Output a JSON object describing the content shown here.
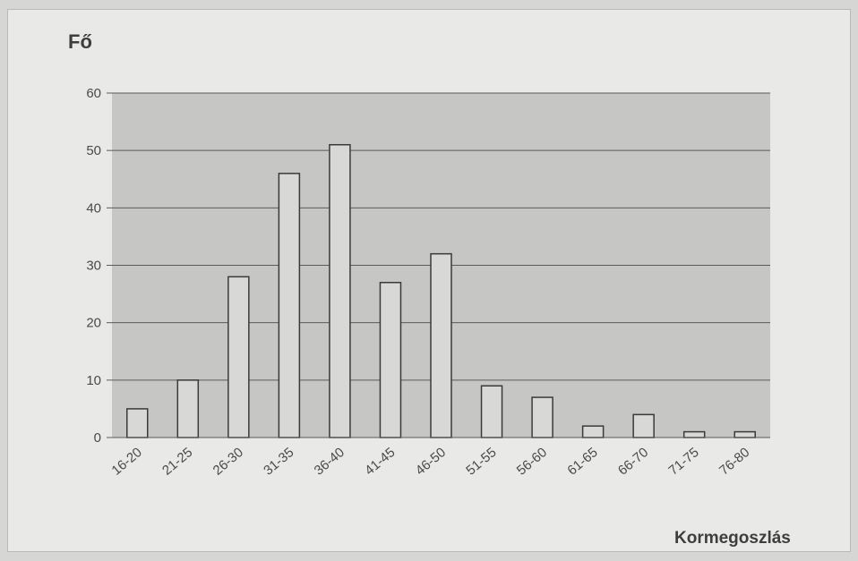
{
  "chart_data": {
    "type": "bar",
    "title": "",
    "ylabel": "Fő",
    "xlabel": "Kormegoszlás",
    "ylim": [
      0,
      60
    ],
    "yticks": [
      0,
      10,
      20,
      30,
      40,
      50,
      60
    ],
    "grid": true,
    "legend": "none",
    "categories": [
      "16-20",
      "21-25",
      "26-30",
      "31-35",
      "36-40",
      "41-45",
      "46-50",
      "51-55",
      "56-60",
      "61-65",
      "66-70",
      "71-75",
      "76-80"
    ],
    "values": [
      5,
      10,
      28,
      46,
      51,
      27,
      32,
      9,
      7,
      2,
      4,
      1,
      1
    ],
    "colors": {
      "plot_background": "#c6c6c4",
      "bar_fill": "#d8d8d6",
      "bar_stroke": "#3a3a3a",
      "gridline": "#5a5a5a"
    }
  }
}
